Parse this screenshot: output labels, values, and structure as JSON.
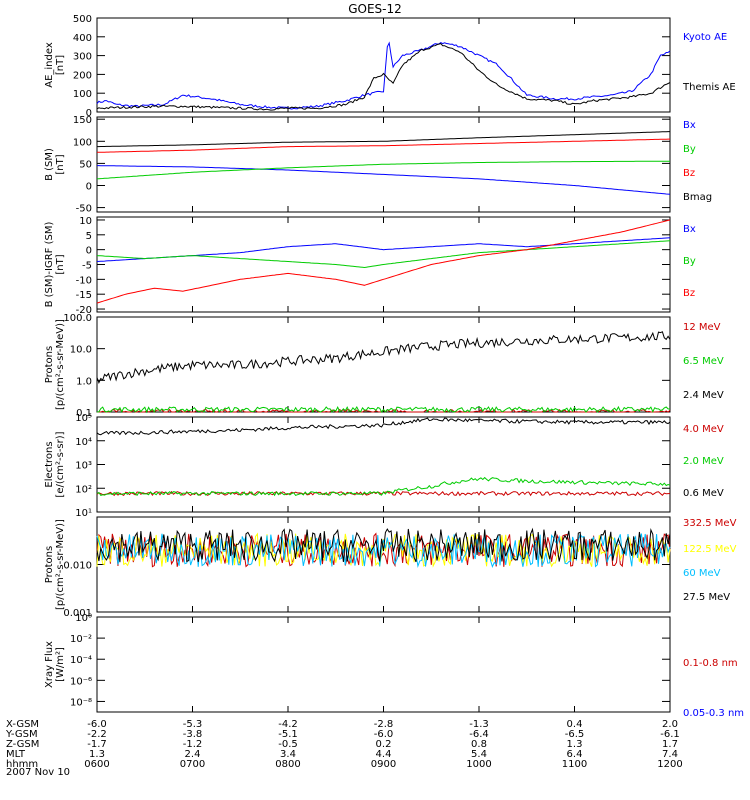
{
  "figure": {
    "title": "GOES-12",
    "date": "2007 Nov 10"
  },
  "chart_data": [
    {
      "type": "line",
      "ylabel": [
        "AE_index",
        "[nT]"
      ],
      "yscale": "linear",
      "ylim": [
        0,
        500
      ],
      "yticks": [
        0,
        100,
        200,
        300,
        400,
        500
      ],
      "xlim": [
        0,
        6
      ],
      "series": [
        {
          "name": "Kyoto AE",
          "color": "#0000ff",
          "x": [
            0,
            0.1,
            0.2,
            0.4,
            0.7,
            0.9,
            1.2,
            1.5,
            1.8,
            2.0,
            2.3,
            2.6,
            2.8,
            3.0,
            3.05,
            3.1,
            3.2,
            3.4,
            3.6,
            3.8,
            4.0,
            4.2,
            4.5,
            4.8,
            5.0,
            5.2,
            5.4,
            5.6,
            5.8,
            5.9,
            6.0
          ],
          "y": [
            50,
            60,
            40,
            30,
            40,
            90,
            70,
            40,
            25,
            20,
            30,
            60,
            90,
            110,
            400,
            240,
            300,
            330,
            370,
            350,
            300,
            250,
            90,
            70,
            70,
            80,
            90,
            110,
            200,
            300,
            320
          ]
        },
        {
          "name": "Themis AE",
          "color": "#000000",
          "x": [
            0,
            0.3,
            0.6,
            0.9,
            1.2,
            1.5,
            1.8,
            2.0,
            2.3,
            2.6,
            2.8,
            2.9,
            3.0,
            3.1,
            3.2,
            3.4,
            3.6,
            3.8,
            4.0,
            4.2,
            4.5,
            4.8,
            5.0,
            5.2,
            5.4,
            5.6,
            5.8,
            6.0
          ],
          "y": [
            20,
            25,
            30,
            30,
            25,
            20,
            15,
            20,
            20,
            40,
            80,
            180,
            200,
            150,
            250,
            330,
            360,
            320,
            220,
            140,
            70,
            60,
            40,
            60,
            70,
            80,
            100,
            160
          ]
        }
      ]
    },
    {
      "type": "line",
      "ylabel": [
        "B (SM)",
        "[nT]"
      ],
      "yscale": "linear",
      "ylim": [
        -60,
        155
      ],
      "yticks": [
        -50,
        0,
        50,
        100,
        150
      ],
      "xlim": [
        0,
        6
      ],
      "series": [
        {
          "name": "Bx",
          "color": "#0000ff",
          "x": [
            0,
            1,
            2,
            3,
            4,
            5,
            6
          ],
          "y": [
            45,
            42,
            35,
            25,
            15,
            0,
            -20
          ]
        },
        {
          "name": "By",
          "color": "#00cc00",
          "x": [
            0,
            1,
            2,
            3,
            4,
            5,
            6
          ],
          "y": [
            15,
            30,
            40,
            48,
            52,
            54,
            55
          ]
        },
        {
          "name": "Bz",
          "color": "#ff0000",
          "x": [
            0,
            1,
            2,
            3,
            4,
            5,
            6
          ],
          "y": [
            75,
            80,
            88,
            90,
            95,
            100,
            105
          ]
        },
        {
          "name": "Bmag",
          "color": "#000000",
          "x": [
            0,
            1,
            2,
            3,
            4,
            5,
            6
          ],
          "y": [
            88,
            92,
            98,
            100,
            108,
            115,
            122
          ]
        }
      ]
    },
    {
      "type": "line",
      "ylabel": [
        "B (SM)-IGRF (SM)",
        "[nT]"
      ],
      "yscale": "linear",
      "ylim": [
        -21,
        11
      ],
      "yticks": [
        -20,
        -15,
        -10,
        -5,
        0,
        5,
        10
      ],
      "xlim": [
        0,
        6
      ],
      "series": [
        {
          "name": "Bx",
          "color": "#0000ff",
          "x": [
            0,
            0.5,
            1,
            1.5,
            2,
            2.5,
            3,
            3.5,
            4,
            4.5,
            5,
            5.5,
            6
          ],
          "y": [
            -4,
            -3,
            -2,
            -1,
            1,
            2,
            0,
            1,
            2,
            1,
            2,
            3,
            4
          ]
        },
        {
          "name": "By",
          "color": "#00cc00",
          "x": [
            0,
            0.5,
            1,
            1.5,
            2,
            2.5,
            2.8,
            3,
            3.5,
            4,
            4.5,
            5,
            5.5,
            6
          ],
          "y": [
            -2,
            -3,
            -2,
            -3,
            -4,
            -5,
            -6,
            -5,
            -3,
            -1,
            0,
            1,
            2,
            3
          ]
        },
        {
          "name": "Bz",
          "color": "#ff0000",
          "x": [
            0,
            0.3,
            0.6,
            0.9,
            1.2,
            1.5,
            2,
            2.5,
            2.8,
            3,
            3.5,
            4,
            4.5,
            5,
            5.5,
            6
          ],
          "y": [
            -18,
            -15,
            -13,
            -14,
            -12,
            -10,
            -8,
            -10,
            -12,
            -10,
            -5,
            -2,
            0,
            3,
            6,
            10
          ]
        }
      ]
    },
    {
      "type": "line",
      "ylabel": [
        "Protons",
        "[p/(cm²-s-sr-MeV)]"
      ],
      "yscale": "log",
      "ylim": [
        0.1,
        100
      ],
      "yticks": [
        0.1,
        1.0,
        10.0,
        100.0
      ],
      "ytick_labels": [
        "0.1",
        "1.0",
        "10.0",
        "100.0"
      ],
      "xlim": [
        0,
        6
      ],
      "series": [
        {
          "name": "12 MeV",
          "color": "#cc0000",
          "x": [
            0,
            6
          ],
          "y": [
            0.1,
            0.1
          ]
        },
        {
          "name": "6.5 MeV",
          "color": "#00cc00",
          "x": [
            0,
            6
          ],
          "y": [
            0.12,
            0.12
          ]
        },
        {
          "name": "2.4 MeV",
          "color": "#000000",
          "x": [
            0,
            0.5,
            1,
            1.5,
            2,
            2.5,
            3,
            3.5,
            4,
            4.5,
            5,
            5.5,
            6
          ],
          "y": [
            1,
            2,
            3,
            3,
            4,
            5,
            8,
            12,
            15,
            18,
            20,
            22,
            25
          ]
        }
      ]
    },
    {
      "type": "line",
      "ylabel": [
        "Electrons",
        "[e/(cm²-s-sr)]"
      ],
      "yscale": "log",
      "ylim": [
        10,
        100000
      ],
      "yticks": [
        10,
        100,
        1000,
        10000,
        100000
      ],
      "ytick_labels": [
        "10¹",
        "10²",
        "10³",
        "10⁴",
        "10⁵"
      ],
      "xlim": [
        0,
        6
      ],
      "series": [
        {
          "name": "4.0 MeV",
          "color": "#cc0000",
          "x": [
            0,
            6
          ],
          "y": [
            60,
            60
          ]
        },
        {
          "name": "2.0 MeV",
          "color": "#00cc00",
          "x": [
            0,
            1,
            2,
            3,
            3.5,
            4,
            4.5,
            5,
            5.5,
            6
          ],
          "y": [
            60,
            60,
            60,
            60,
            120,
            250,
            200,
            180,
            160,
            150
          ]
        },
        {
          "name": "0.6 MeV",
          "color": "#000000",
          "x": [
            0,
            0.5,
            1,
            1.5,
            2,
            2.5,
            3,
            3.5,
            4,
            4.5,
            5,
            5.5,
            6
          ],
          "y": [
            20000,
            22000,
            25000,
            28000,
            35000,
            40000,
            45000,
            80000,
            70000,
            65000,
            60000,
            60000,
            60000
          ]
        }
      ]
    },
    {
      "type": "line",
      "ylabel": [
        "Protons",
        "[p/(cm²-s-sr-MeV)]"
      ],
      "yscale": "log",
      "ylim": [
        0.001,
        0.1
      ],
      "yticks": [
        0.001,
        0.01
      ],
      "ytick_labels": [
        "0.001",
        "0.010"
      ],
      "xlim": [
        0,
        6
      ],
      "series": [
        {
          "name": "332.5 MeV",
          "color": "#cc0000",
          "x": [
            0,
            6
          ],
          "y": [
            0.02,
            0.02
          ]
        },
        {
          "name": "122.5 MeV",
          "color": "#ffff00",
          "x": [
            0,
            6
          ],
          "y": [
            0.02,
            0.02
          ]
        },
        {
          "name": "60 MeV",
          "color": "#00bfff",
          "x": [
            0,
            6
          ],
          "y": [
            0.02,
            0.02
          ]
        },
        {
          "name": "27.5 MeV",
          "color": "#000000",
          "x": [
            0,
            6
          ],
          "y": [
            0.025,
            0.025
          ]
        }
      ]
    },
    {
      "type": "line",
      "ylabel": [
        "Xray Flux",
        "[W/m²]"
      ],
      "yscale": "log",
      "ylim": [
        1e-09,
        1.0
      ],
      "yticks": [
        1e-08,
        1e-06,
        0.0001,
        0.01,
        1.0
      ],
      "ytick_labels": [
        "10⁻⁸",
        "10⁻⁶",
        "10⁻⁴",
        "10⁻²",
        "10⁰"
      ],
      "xlim": [
        0,
        6
      ],
      "series": [
        {
          "name": "0.1-0.8 nm",
          "color": "#cc0000",
          "x": [],
          "y": []
        },
        {
          "name": "0.05-0.3 nm",
          "color": "#0000ff",
          "x": [],
          "y": []
        }
      ]
    }
  ],
  "x_axis": {
    "ticks": [
      0,
      1,
      2,
      3,
      4,
      5,
      6
    ],
    "rows": [
      {
        "label": "X-GSM",
        "values": [
          "-6.0",
          "-5.3",
          "-4.2",
          "-2.8",
          "-1.3",
          "0.4",
          "2.0"
        ]
      },
      {
        "label": "Y-GSM",
        "values": [
          "-2.2",
          "-3.8",
          "-5.1",
          "-6.0",
          "-6.4",
          "-6.5",
          "-6.1"
        ]
      },
      {
        "label": "Z-GSM",
        "values": [
          "-1.7",
          "-1.2",
          "-0.5",
          "0.2",
          "0.8",
          "1.3",
          "1.7"
        ]
      },
      {
        "label": "MLT",
        "values": [
          "1.3",
          "2.4",
          "3.4",
          "4.4",
          "5.4",
          "6.4",
          "7.4"
        ]
      },
      {
        "label": "hhmm",
        "values": [
          "0600",
          "0700",
          "0800",
          "0900",
          "1000",
          "1100",
          "1200"
        ]
      }
    ]
  }
}
